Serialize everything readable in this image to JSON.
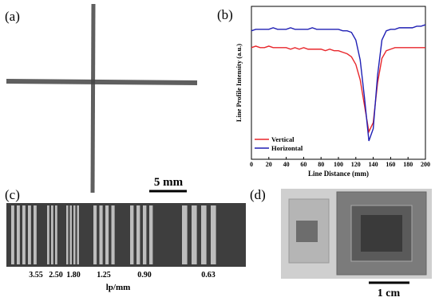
{
  "panels": {
    "a": {
      "label": "(a)",
      "scale_bar": "5 mm"
    },
    "b": {
      "label": "(b)"
    },
    "c": {
      "label": "(c)",
      "resolutions": [
        "3.55",
        "2.50",
        "1.80",
        "1.25",
        "0.90",
        "0.63"
      ],
      "axis_label": "lp/mm"
    },
    "d": {
      "label": "(d)",
      "scale_bar": "1 cm"
    }
  },
  "chart_data": {
    "type": "line",
    "x_label": "Line Distance (mm)",
    "y_label": "Line Profile Intensity (a.u.)",
    "x": [
      0,
      5,
      10,
      15,
      20,
      25,
      30,
      35,
      40,
      45,
      50,
      55,
      60,
      65,
      70,
      75,
      80,
      85,
      90,
      95,
      100,
      105,
      110,
      115,
      120,
      125,
      130,
      135,
      140,
      145,
      150,
      155,
      160,
      165,
      170,
      175,
      180,
      185,
      190,
      195,
      200
    ],
    "series": [
      {
        "name": "Vertical",
        "color": "#e8262b",
        "values": [
          73,
          74,
          73,
          73,
          74,
          73,
          73,
          73,
          73,
          72,
          73,
          72,
          73,
          72,
          72,
          72,
          72,
          71,
          72,
          71,
          71,
          70,
          69,
          67,
          62,
          52,
          35,
          18,
          24,
          50,
          66,
          71,
          72,
          73,
          73,
          73,
          73,
          73,
          73,
          73,
          73
        ]
      },
      {
        "name": "Horizontal",
        "color": "#1f1fb4",
        "values": [
          84,
          85,
          85,
          85,
          85,
          86,
          85,
          85,
          85,
          86,
          85,
          85,
          85,
          85,
          86,
          85,
          85,
          85,
          85,
          85,
          85,
          84,
          84,
          83,
          78,
          65,
          40,
          12,
          20,
          55,
          78,
          84,
          85,
          85,
          86,
          86,
          86,
          86,
          87,
          87,
          88
        ]
      }
    ],
    "xlim": [
      0,
      200
    ],
    "xticks": [
      0,
      20,
      40,
      60,
      80,
      100,
      120,
      140,
      160,
      180,
      200
    ],
    "ylim": [
      0,
      100
    ],
    "grid": false,
    "legend": "lower-left"
  }
}
